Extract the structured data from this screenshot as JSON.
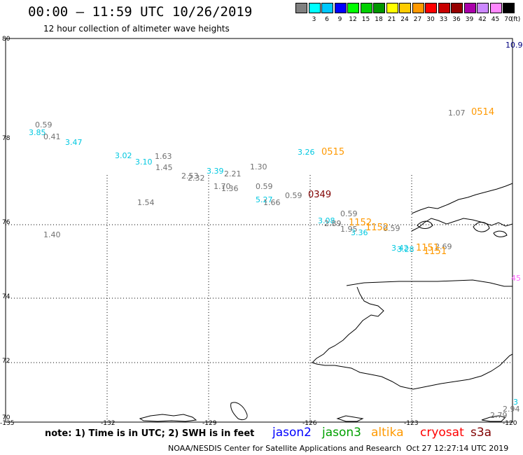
{
  "header": {
    "title": "00:00 – 11:59 UTC 10/26/2019",
    "subtitle": "12 hour collection of altimeter wave heights"
  },
  "scale": {
    "unit": "(ft)",
    "bins": [
      {
        "label": "",
        "color": "#808080"
      },
      {
        "label": "3",
        "color": "#00ffff"
      },
      {
        "label": "6",
        "color": "#00c8ff"
      },
      {
        "label": "9",
        "color": "#0000ff"
      },
      {
        "label": "12",
        "color": "#00ff00"
      },
      {
        "label": "15",
        "color": "#00d000"
      },
      {
        "label": "18",
        "color": "#009600"
      },
      {
        "label": "21",
        "color": "#ffff00"
      },
      {
        "label": "24",
        "color": "#ffcc00"
      },
      {
        "label": "27",
        "color": "#ff9900"
      },
      {
        "label": "30",
        "color": "#ff0000"
      },
      {
        "label": "33",
        "color": "#c80000"
      },
      {
        "label": "36",
        "color": "#960000"
      },
      {
        "label": "39",
        "color": "#aa00aa"
      },
      {
        "label": "42",
        "color": "#cc88ff"
      },
      {
        "label": "45",
        "color": "#ff88ff"
      },
      {
        "label": "70",
        "color": "#000000"
      }
    ]
  },
  "axes": {
    "lat_labels": [
      "80",
      "78",
      "76",
      "74",
      "72",
      "70"
    ],
    "lon_labels": [
      "-135",
      "-132",
      "-129",
      "-126",
      "-123",
      "-120"
    ]
  },
  "colors": {
    "gray": "#707070",
    "cyan": "#00c8e0",
    "orange": "#ff9900",
    "darkred": "#800000",
    "magenta": "#ff66ff",
    "navy": "#000080"
  },
  "wave_labels": [
    {
      "text": "0.59",
      "color": "gray"
    },
    {
      "text": "3.85",
      "color": "cyan"
    },
    {
      "text": "0.41",
      "color": "gray"
    },
    {
      "text": "3.47",
      "color": "cyan"
    },
    {
      "text": "3.02",
      "color": "cyan"
    },
    {
      "text": "3.10",
      "color": "cyan"
    },
    {
      "text": "1.63",
      "color": "gray"
    },
    {
      "text": "1.45",
      "color": "gray"
    },
    {
      "text": "2.53",
      "color": "gray"
    },
    {
      "text": "2.32",
      "color": "gray"
    },
    {
      "text": "3.39",
      "color": "cyan"
    },
    {
      "text": "2.21",
      "color": "gray"
    },
    {
      "text": "1.30",
      "color": "gray"
    },
    {
      "text": "1.70",
      "color": "gray"
    },
    {
      "text": "1.36",
      "color": "gray"
    },
    {
      "text": "0.59",
      "color": "gray"
    },
    {
      "text": "1.54",
      "color": "gray"
    },
    {
      "text": "5.27",
      "color": "cyan"
    },
    {
      "text": "1.66",
      "color": "gray"
    },
    {
      "text": "0.59",
      "color": "gray"
    },
    {
      "text": "1.40",
      "color": "gray"
    },
    {
      "text": "3.26",
      "color": "cyan"
    },
    {
      "text": "1.07",
      "color": "gray"
    },
    {
      "text": "0.59",
      "color": "gray"
    },
    {
      "text": "3.08",
      "color": "cyan"
    },
    {
      "text": "2.89",
      "color": "gray"
    },
    {
      "text": "1.95",
      "color": "gray"
    },
    {
      "text": "3.36",
      "color": "cyan"
    },
    {
      "text": "0.59",
      "color": "gray"
    },
    {
      "text": "3.42",
      "color": "cyan"
    },
    {
      "text": "3.28",
      "color": "cyan"
    },
    {
      "text": "2.69",
      "color": "gray"
    },
    {
      "text": "10.9",
      "color": "navy"
    },
    {
      "text": "45",
      "color": "magenta"
    },
    {
      "text": "3",
      "color": "cyan"
    },
    {
      "text": "2.94",
      "color": "gray"
    },
    {
      "text": "2.79",
      "color": "gray"
    }
  ],
  "pass_labels": [
    {
      "text": "0514",
      "color": "orange"
    },
    {
      "text": "0515",
      "color": "orange"
    },
    {
      "text": "0349",
      "color": "darkred"
    },
    {
      "text": "1152",
      "color": "orange"
    },
    {
      "text": "1152",
      "color": "orange"
    },
    {
      "text": "1151",
      "color": "orange"
    },
    {
      "text": "1151",
      "color": "orange"
    }
  ],
  "footer": {
    "note": "note: 1) Time is in UTC; 2) SWH is in feet",
    "legend": [
      {
        "name": "jason2",
        "color": "#0000ff"
      },
      {
        "name": "jason3",
        "color": "#00a000"
      },
      {
        "name": "altika",
        "color": "#ff9900"
      },
      {
        "name": "cryosat",
        "color": "#ff0000"
      },
      {
        "name": "s3a",
        "color": "#800000"
      }
    ],
    "credit": "NOAA/NESDIS Center for Satellite Applications and Research",
    "timestamp": "Oct 27 12:27:14 UTC 2019"
  }
}
